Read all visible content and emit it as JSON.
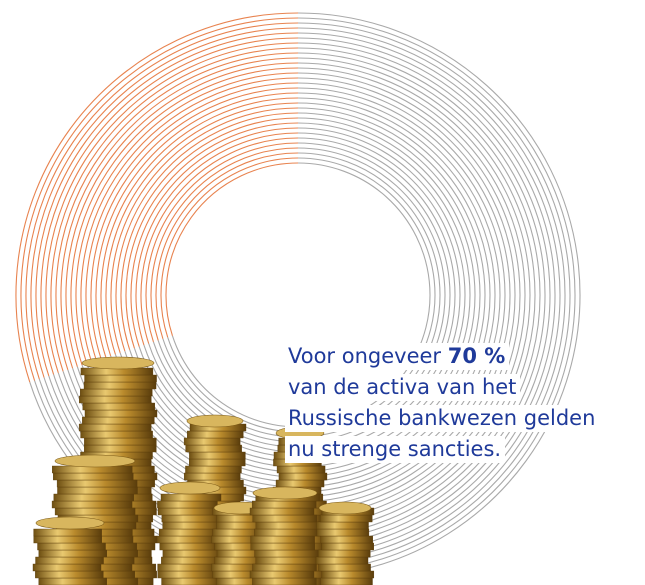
{
  "highlight": {
    "value": 70,
    "label": "70 %"
  },
  "caption": {
    "before": "Voor ongeveer",
    "lines": [
      "van de activa van het",
      "Russische bankwezen gelden",
      "nu strenge sancties."
    ]
  }
}
